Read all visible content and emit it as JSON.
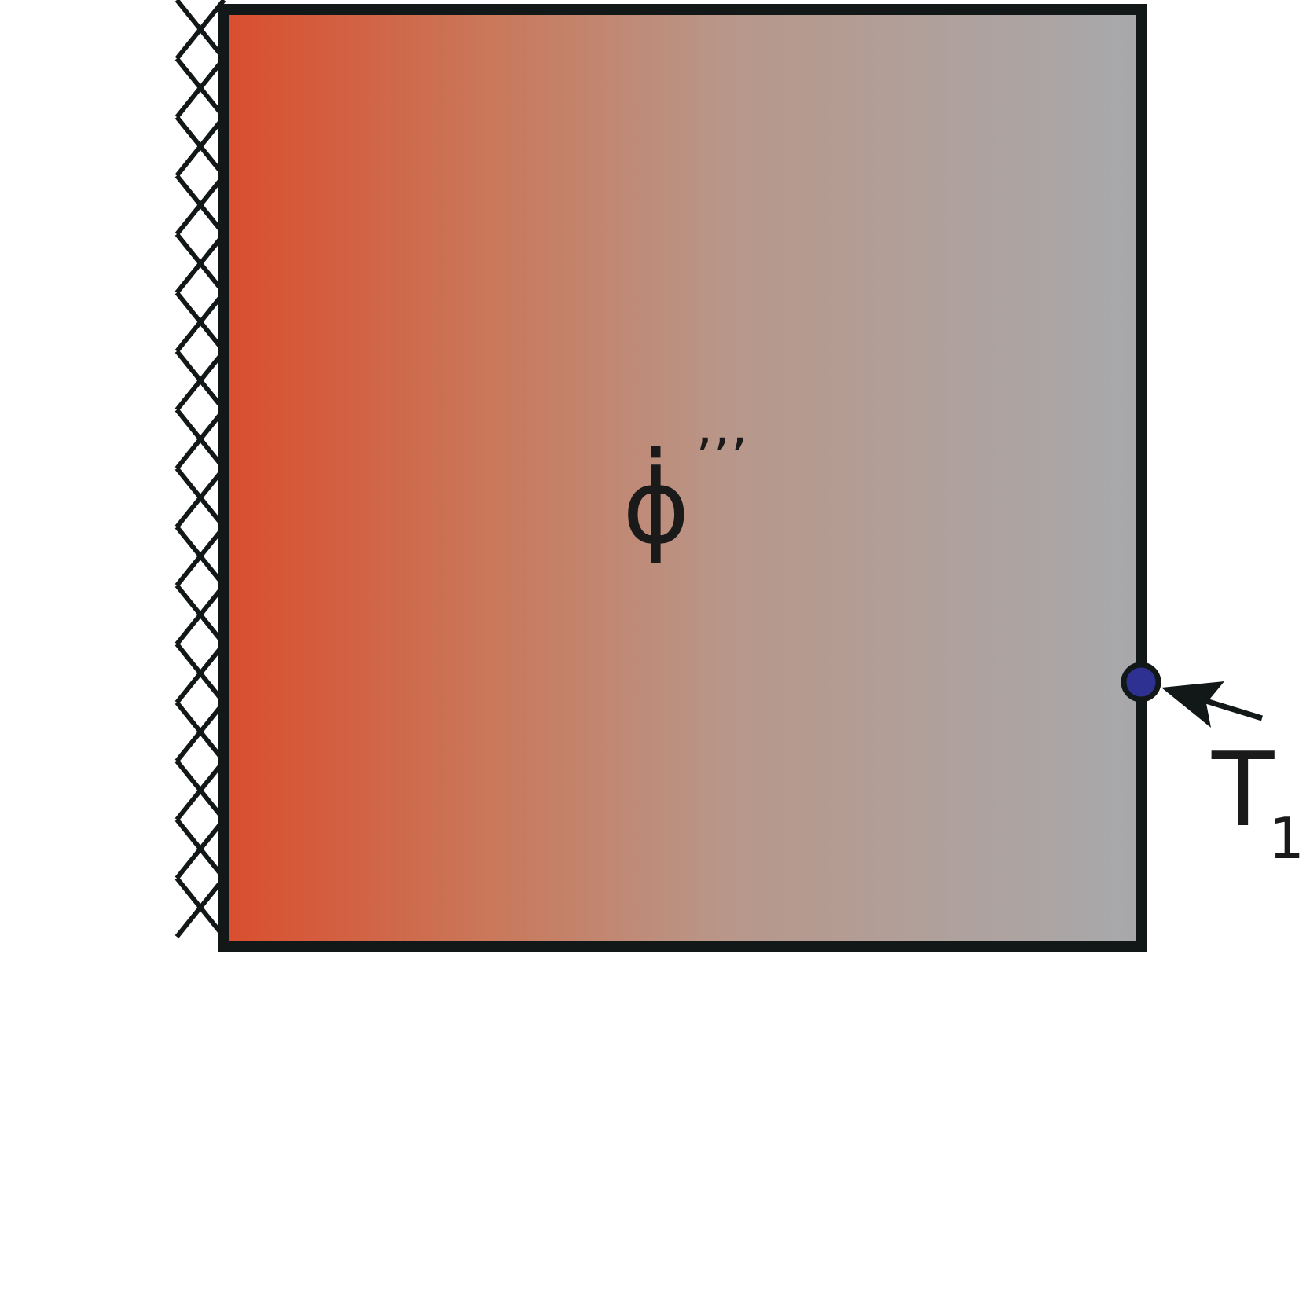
{
  "diagram": {
    "heat_generation_symbol": "ϕ̇",
    "heat_generation_superscript": "’’’",
    "temperature_label": "T",
    "temperature_subscript": "1"
  },
  "colors": {
    "hot_side": "#d94e2e",
    "cold_side": "#a8a9ac",
    "outline": "#121817",
    "probe_fill": "#2e3192",
    "text": "#1a1a1a"
  },
  "icons": {
    "insulated_wall": "cross-hatch-pattern",
    "temperature_probe": "filled-circle",
    "pointer": "arrow"
  }
}
